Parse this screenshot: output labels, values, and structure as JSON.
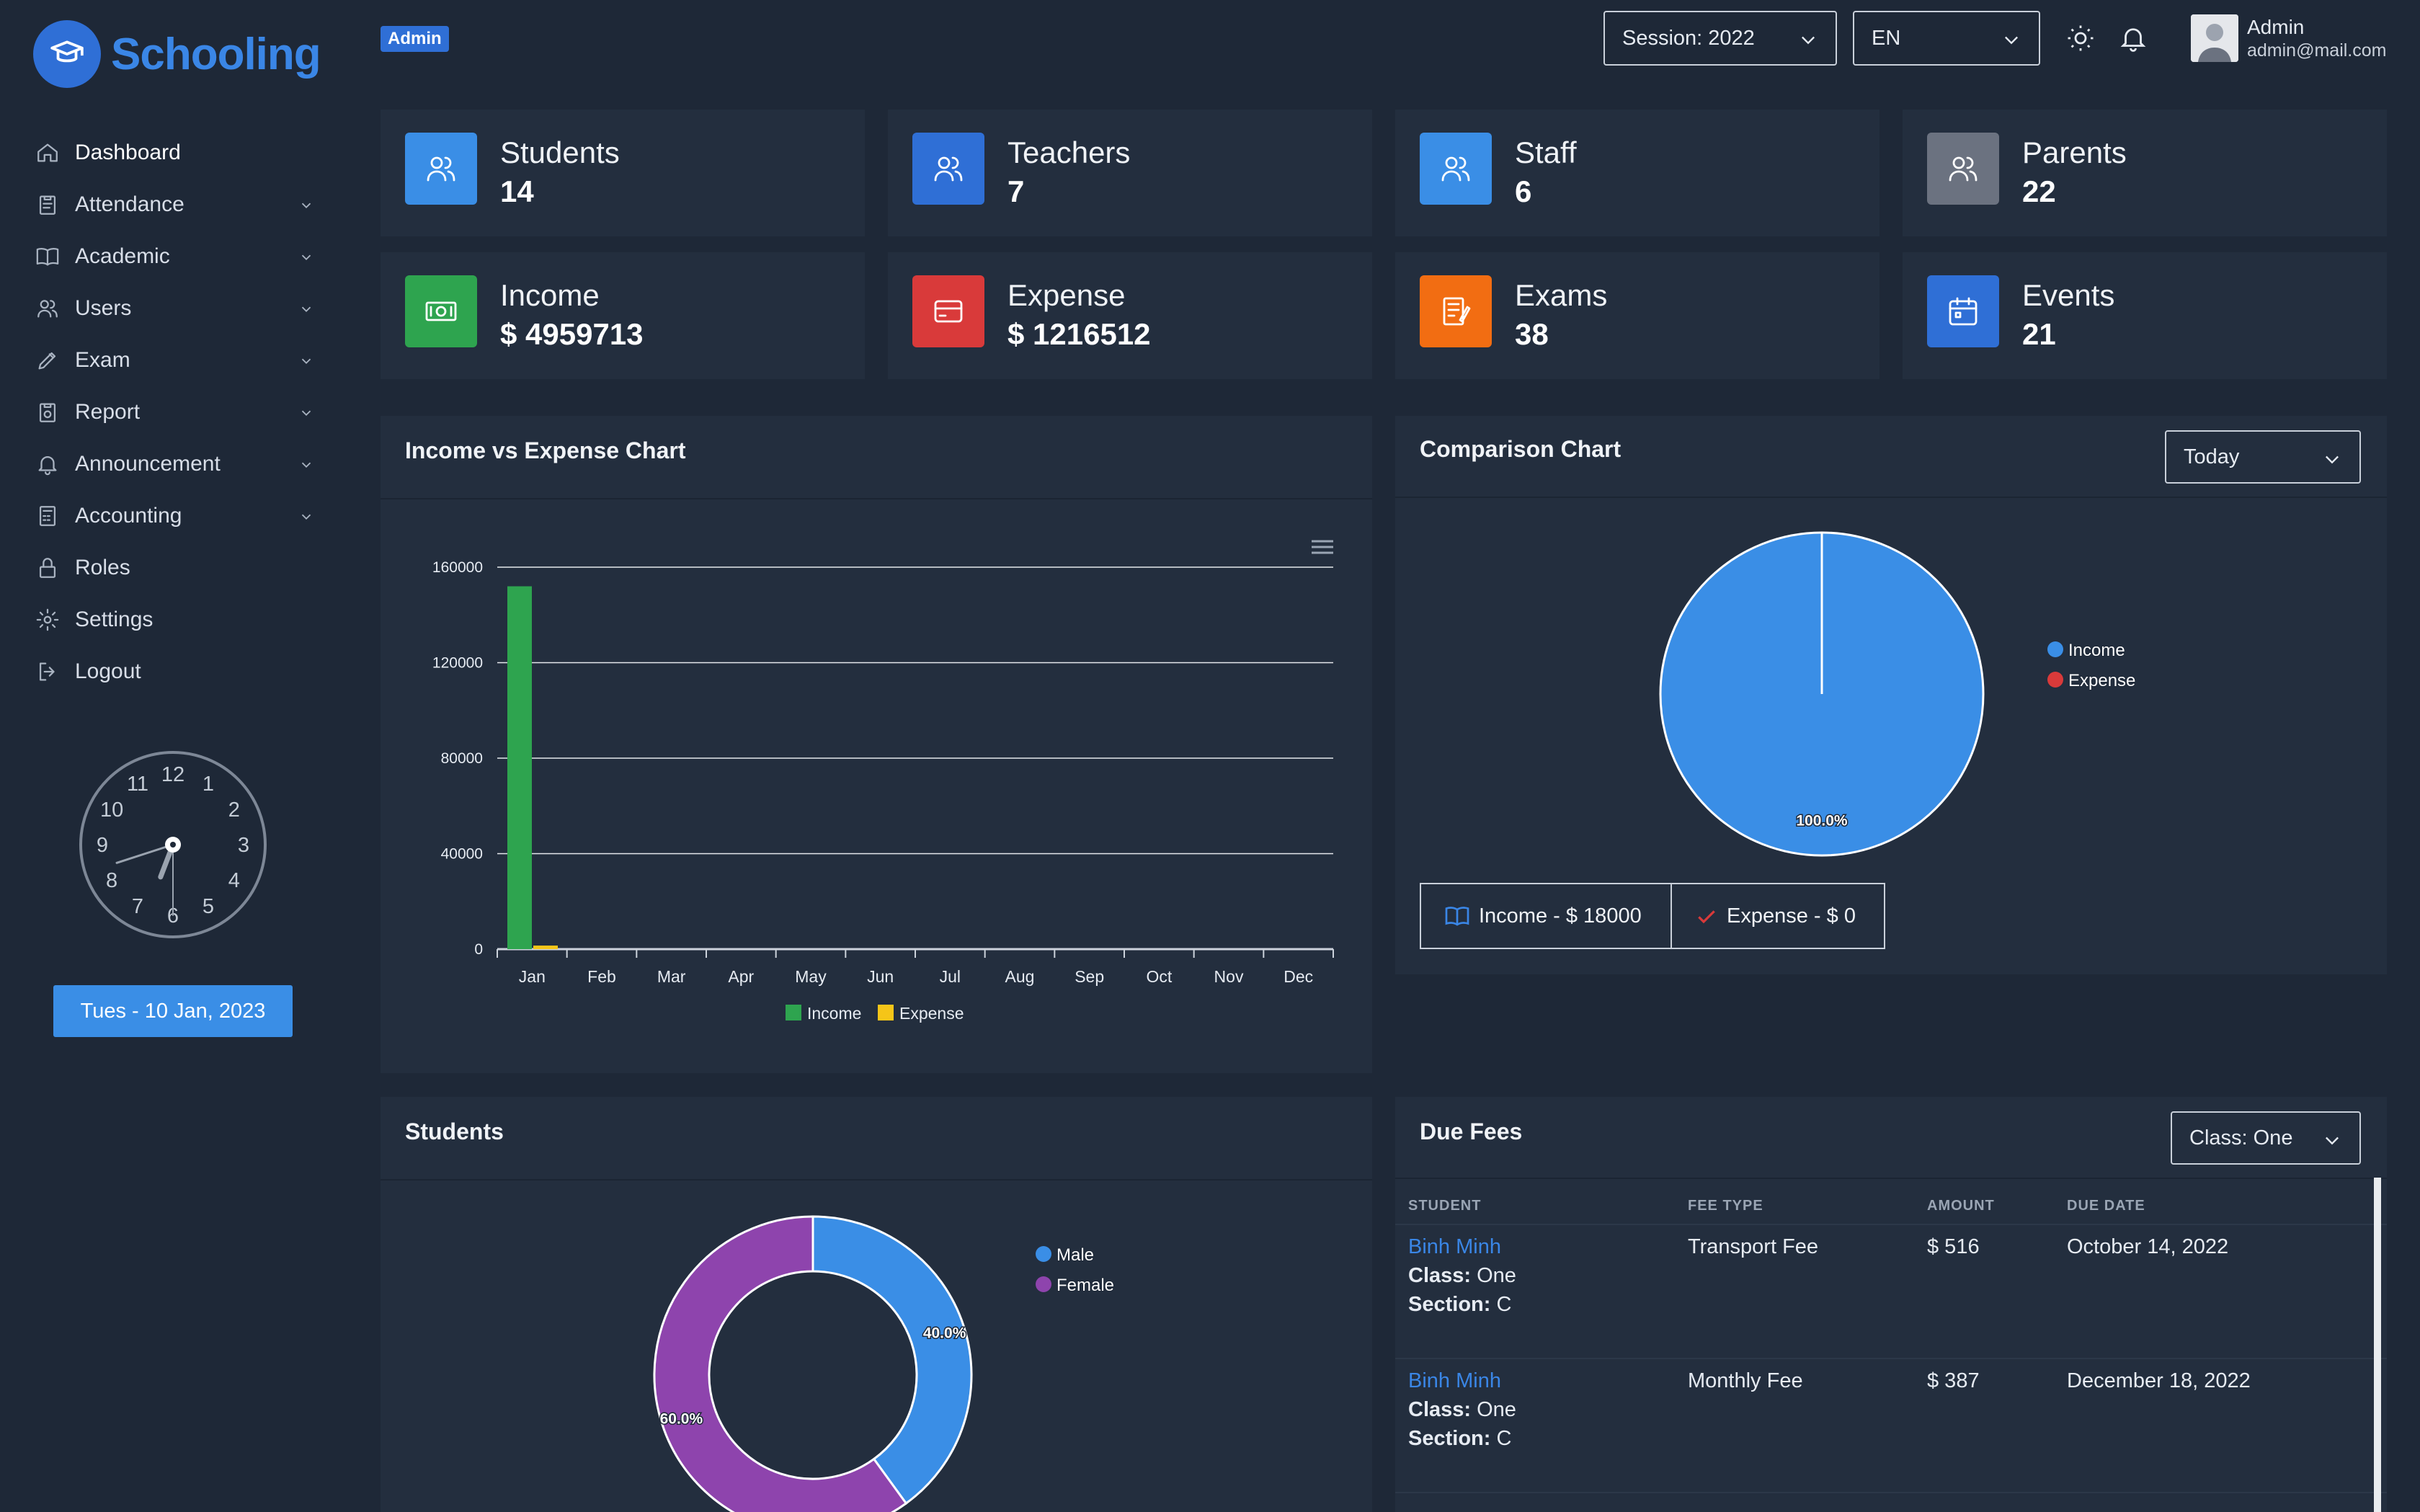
{
  "brand": {
    "name": "Schooling",
    "role_badge": "Admin"
  },
  "sidebar": {
    "items": [
      {
        "label": "Dashboard",
        "icon": "home-icon",
        "expandable": false
      },
      {
        "label": "Attendance",
        "icon": "clipboard-icon",
        "expandable": true
      },
      {
        "label": "Academic",
        "icon": "book-icon",
        "expandable": true
      },
      {
        "label": "Users",
        "icon": "users-icon",
        "expandable": true
      },
      {
        "label": "Exam",
        "icon": "pencil-icon",
        "expandable": true
      },
      {
        "label": "Report",
        "icon": "report-icon",
        "expandable": true
      },
      {
        "label": "Announcement",
        "icon": "bell-icon",
        "expandable": true
      },
      {
        "label": "Accounting",
        "icon": "calculator-icon",
        "expandable": true
      },
      {
        "label": "Roles",
        "icon": "lock-icon",
        "expandable": false
      },
      {
        "label": "Settings",
        "icon": "gear-icon",
        "expandable": false
      },
      {
        "label": "Logout",
        "icon": "logout-icon",
        "expandable": false
      }
    ],
    "clock": {
      "numerals": [
        "12",
        "1",
        "2",
        "3",
        "4",
        "5",
        "6",
        "7",
        "8",
        "9",
        "10",
        "11"
      ],
      "time": "6:42"
    },
    "date": "Tues - 10 Jan, 2023"
  },
  "topbar": {
    "session": "Session: 2022",
    "language": "EN",
    "user_name": "Admin",
    "user_email": "admin@mail.com"
  },
  "stats": [
    {
      "label": "Students",
      "value": "14",
      "color": "#3a8ee6",
      "icon": "users-icon"
    },
    {
      "label": "Teachers",
      "value": "7",
      "color": "#2f6fd6",
      "icon": "users-icon"
    },
    {
      "label": "Staff",
      "value": "6",
      "color": "#3a8ee6",
      "icon": "users-icon"
    },
    {
      "label": "Parents",
      "value": "22",
      "color": "#6b7280",
      "icon": "users-icon"
    },
    {
      "label": "Income",
      "value": "$ 4959713",
      "color": "#2ea44f",
      "icon": "money-icon"
    },
    {
      "label": "Expense",
      "value": "$ 1216512",
      "color": "#d93a3a",
      "icon": "credit-card-icon"
    },
    {
      "label": "Exams",
      "value": "38",
      "color": "#f26d12",
      "icon": "exam-sheet-icon"
    },
    {
      "label": "Events",
      "value": "21",
      "color": "#2f6fd6",
      "icon": "calendar-icon"
    }
  ],
  "income_expense": {
    "title": "Income vs Expense Chart",
    "menu_icon": "hamburger-icon"
  },
  "comparison": {
    "title": "Comparison Chart",
    "range": "Today",
    "income_button": "Income - $ 18000",
    "expense_button": "Expense - $ 0"
  },
  "students_panel": {
    "title": "Students"
  },
  "due_fees": {
    "title": "Due Fees",
    "class_filter": "Class: One",
    "headers": [
      "STUDENT",
      "FEE TYPE",
      "AMOUNT",
      "DUE DATE"
    ],
    "class_label": "Class:",
    "section_label": "Section:",
    "rows": [
      {
        "student": "Binh Minh",
        "class": "One",
        "section": "C",
        "fee_type": "Transport Fee",
        "amount": "$ 516",
        "due_date": "October 14, 2022"
      },
      {
        "student": "Binh Minh",
        "class": "One",
        "section": "C",
        "fee_type": "Monthly Fee",
        "amount": "$ 387",
        "due_date": "December 18, 2022"
      }
    ]
  },
  "chart_data": [
    {
      "type": "bar",
      "title": "Income vs Expense Chart",
      "categories": [
        "Jan",
        "Feb",
        "Mar",
        "Apr",
        "May",
        "Jun",
        "Jul",
        "Aug",
        "Sep",
        "Oct",
        "Nov",
        "Dec"
      ],
      "series": [
        {
          "name": "Income",
          "color": "#2ea44f",
          "values": [
            152000,
            0,
            0,
            0,
            0,
            0,
            0,
            0,
            0,
            0,
            0,
            0
          ]
        },
        {
          "name": "Expense",
          "color": "#f5c518",
          "values": [
            1500,
            0,
            0,
            0,
            0,
            0,
            0,
            0,
            0,
            0,
            0,
            0
          ]
        }
      ],
      "yticks": [
        "0",
        "40000",
        "80000",
        "120000",
        "160000"
      ],
      "ylim": [
        0,
        160000
      ],
      "grid": true,
      "legend": "bottom"
    },
    {
      "type": "pie",
      "title": "Comparison Chart",
      "slices": [
        {
          "name": "Income",
          "value": 100.0,
          "label": "100.0%",
          "color": "#3a8ee6"
        },
        {
          "name": "Expense",
          "value": 0.0,
          "label": "",
          "color": "#d93a3a"
        }
      ],
      "legend": "right"
    },
    {
      "type": "pie",
      "title": "Students",
      "donut": true,
      "slices": [
        {
          "name": "Male",
          "value": 40.0,
          "label": "40.0%",
          "color": "#3a8ee6"
        },
        {
          "name": "Female",
          "value": 60.0,
          "label": "60.0%",
          "color": "#8e44ad"
        }
      ],
      "legend": "right"
    }
  ]
}
